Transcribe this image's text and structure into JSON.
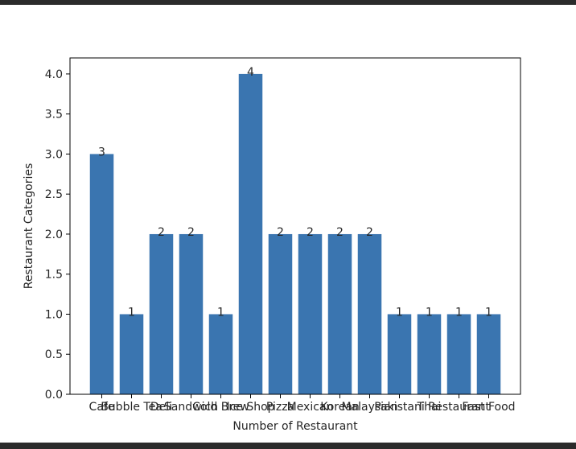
{
  "chart_data": {
    "type": "bar",
    "categories": [
      "Cafe",
      "Bubble Tea",
      "Deli",
      "Sandwich",
      "Cold Brew",
      "Ice Shop",
      "Pizza",
      "Mexican",
      "Korean",
      "Malaysian",
      "Pakistani",
      "Thai",
      "Restaurant",
      "Fast Food"
    ],
    "values": [
      3,
      1,
      2,
      2,
      1,
      4,
      2,
      2,
      2,
      2,
      1,
      1,
      1,
      1
    ],
    "data_labels": [
      "3",
      "1",
      "2",
      "2",
      "1",
      "4",
      "2",
      "2",
      "2",
      "2",
      "1",
      "1",
      "1",
      "1"
    ],
    "xlabel": "Number of Restaurant",
    "ylabel": "Restaurant Categories",
    "ylim": [
      0,
      4.2
    ],
    "yticks": [
      "0.0",
      "0.5",
      "1.0",
      "1.5",
      "2.0",
      "2.5",
      "3.0",
      "3.5",
      "4.0"
    ],
    "bar_color": "#3a75b0",
    "grid": false,
    "legend": false
  }
}
